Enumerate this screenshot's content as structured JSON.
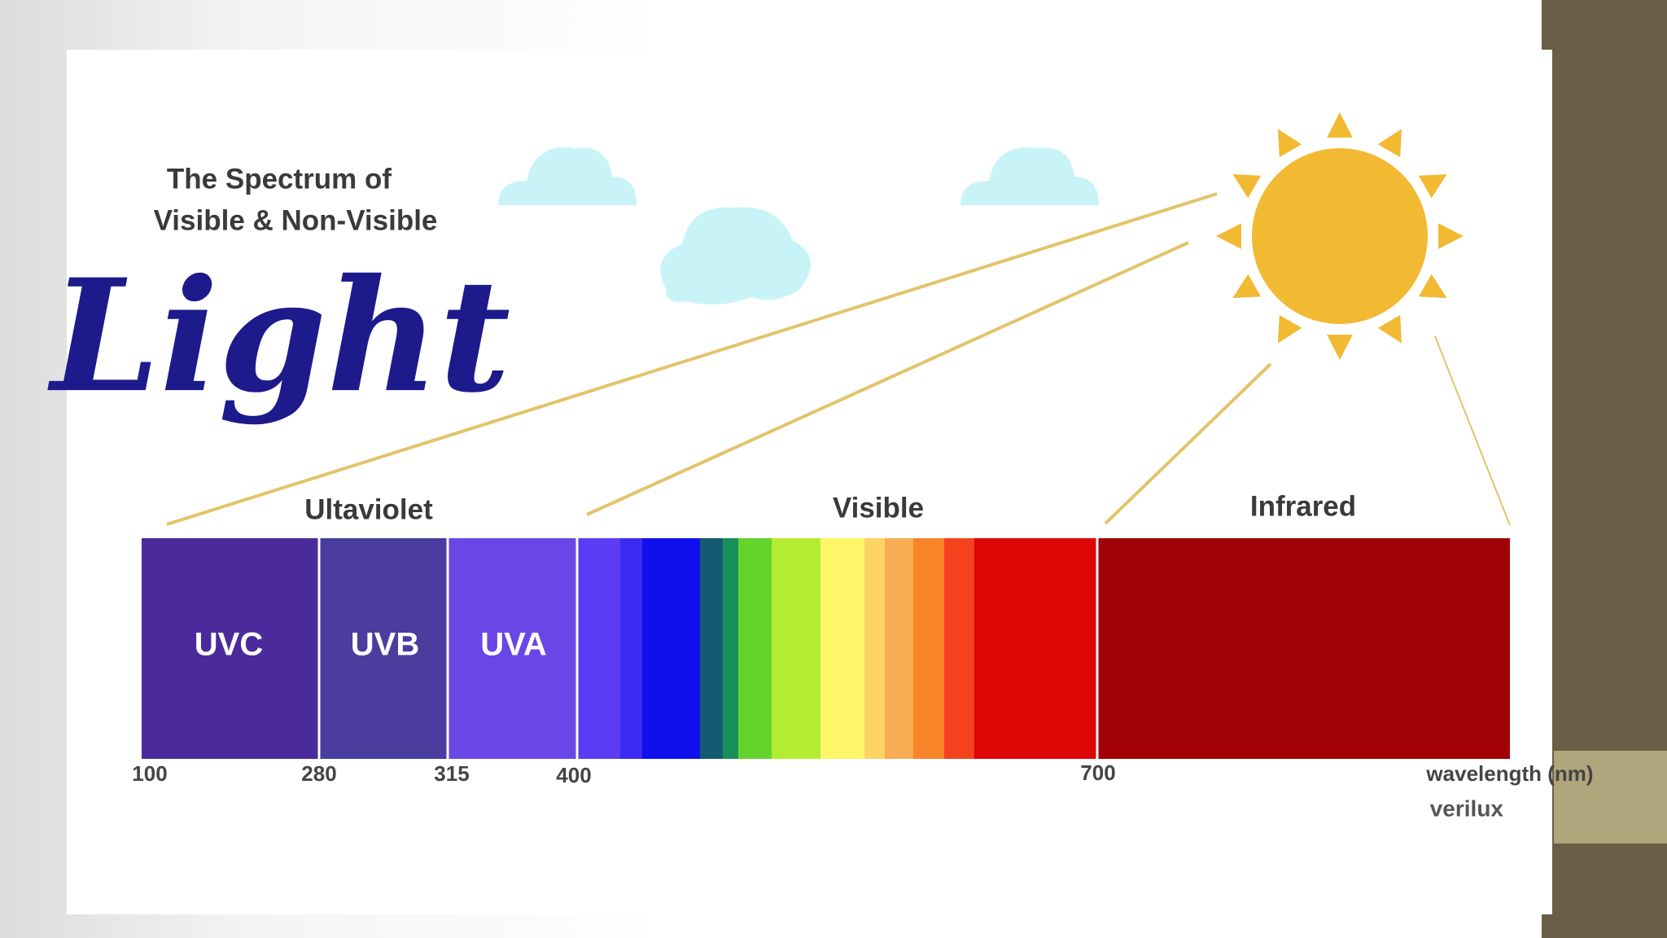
{
  "header": {
    "line1": "The Spectrum of",
    "line2": "Visible & Non-Visible",
    "script_title": "Light"
  },
  "regions": [
    {
      "label": "Ultaviolet"
    },
    {
      "label": "Visible"
    },
    {
      "label": "Infrared"
    }
  ],
  "uv_segments": [
    {
      "label": "UVC"
    },
    {
      "label": "UVB"
    },
    {
      "label": "UVA"
    }
  ],
  "wavelength_ticks": [
    100,
    280,
    315,
    400,
    700
  ],
  "axis_label": "wavelength (nm)",
  "brand": "verilux"
}
